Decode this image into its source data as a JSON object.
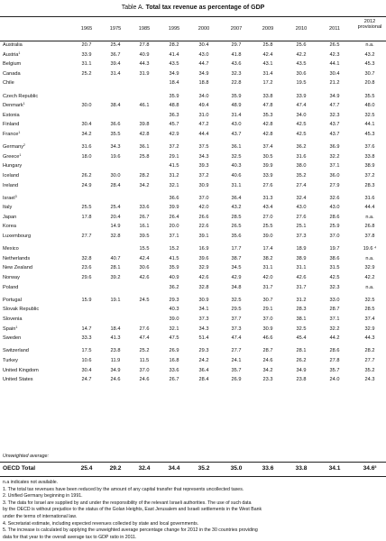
{
  "title": {
    "prefix": "Table A.",
    "main": "Total tax revenue as percentage of GDP"
  },
  "columns": [
    "1965",
    "1975",
    "1985",
    "1995",
    "2000",
    "2007",
    "2009",
    "2010",
    "2011"
  ],
  "last_column": {
    "year": "2012",
    "note": "provisional"
  },
  "rows": [
    {
      "country": "Australia",
      "sup": "",
      "values": [
        "20.7",
        "25.4",
        "27.8",
        "28.2",
        "30.4",
        "29.7",
        "25.8",
        "25.6",
        "26.5",
        "n.a."
      ]
    },
    {
      "country": "Austria",
      "sup": "1",
      "values": [
        "33.9",
        "36.7",
        "40.9",
        "41.4",
        "43.0",
        "41.8",
        "42.4",
        "42.2",
        "42.3",
        "43.2"
      ]
    },
    {
      "country": "Belgium",
      "sup": "",
      "values": [
        "31.1",
        "39.4",
        "44.3",
        "43.5",
        "44.7",
        "43.6",
        "43.1",
        "43.5",
        "44.1",
        "45.3"
      ]
    },
    {
      "country": "Canada",
      "sup": "",
      "values": [
        "25.2",
        "31.4",
        "31.9",
        "34.9",
        "34.9",
        "32.3",
        "31.4",
        "30.6",
        "30.4",
        "30.7"
      ]
    },
    {
      "country": "Chile",
      "sup": "",
      "values": [
        "",
        "",
        "",
        "18.4",
        "18.8",
        "22.8",
        "17.2",
        "19.5",
        "21.2",
        "20.8"
      ]
    },
    {
      "country": "Czech Republic",
      "sup": "",
      "values": [
        "",
        "",
        "",
        "35.9",
        "34.0",
        "35.9",
        "33.8",
        "33.9",
        "34.9",
        "35.5"
      ]
    },
    {
      "country": "Denmark",
      "sup": "1",
      "values": [
        "30.0",
        "38.4",
        "46.1",
        "48.8",
        "49.4",
        "48.9",
        "47.8",
        "47.4",
        "47.7",
        "48.0"
      ]
    },
    {
      "country": "Estonia",
      "sup": "",
      "values": [
        "",
        "",
        "",
        "36.3",
        "31.0",
        "31.4",
        "35.3",
        "34.0",
        "32.3",
        "32.5"
      ]
    },
    {
      "country": "Finland",
      "sup": "",
      "values": [
        "30.4",
        "36.6",
        "39.8",
        "45.7",
        "47.2",
        "43.0",
        "42.8",
        "42.5",
        "43.7",
        "44.1"
      ]
    },
    {
      "country": "France",
      "sup": "1",
      "values": [
        "34.2",
        "35.5",
        "42.8",
        "42.9",
        "44.4",
        "43.7",
        "42.8",
        "42.5",
        "43.7",
        "45.3"
      ]
    },
    {
      "country": "Germany",
      "sup": "2",
      "values": [
        "31.6",
        "34.3",
        "36.1",
        "37.2",
        "37.5",
        "36.1",
        "37.4",
        "36.2",
        "36.9",
        "37.6"
      ]
    },
    {
      "country": "Greece",
      "sup": "1",
      "values": [
        "18.0",
        "19.6",
        "25.8",
        "29.1",
        "34.3",
        "32.5",
        "30.5",
        "31.6",
        "32.2",
        "33.8"
      ]
    },
    {
      "country": "Hungary",
      "sup": "",
      "values": [
        "",
        "",
        "",
        "41.5",
        "39.3",
        "40.3",
        "39.9",
        "38.0",
        "37.1",
        "38.9"
      ]
    },
    {
      "country": "Iceland",
      "sup": "",
      "values": [
        "26.2",
        "30.0",
        "28.2",
        "31.2",
        "37.2",
        "40.6",
        "33.9",
        "35.2",
        "36.0",
        "37.2"
      ]
    },
    {
      "country": "Ireland",
      "sup": "",
      "values": [
        "24.9",
        "28.4",
        "34.2",
        "32.1",
        "30.9",
        "31.1",
        "27.6",
        "27.4",
        "27.9",
        "28.3"
      ]
    },
    {
      "country": "Israel",
      "sup": "3",
      "values": [
        "",
        "",
        "",
        "36.6",
        "37.0",
        "36.4",
        "31.3",
        "32.4",
        "32.6",
        "31.6"
      ]
    },
    {
      "country": "Italy",
      "sup": "",
      "values": [
        "25.5",
        "25.4",
        "33.6",
        "39.9",
        "42.0",
        "43.2",
        "43.4",
        "43.0",
        "43.0",
        "44.4"
      ]
    },
    {
      "country": "Japan",
      "sup": "",
      "values": [
        "17.8",
        "20.4",
        "26.7",
        "26.4",
        "26.6",
        "28.5",
        "27.0",
        "27.6",
        "28.6",
        "n.a."
      ]
    },
    {
      "country": "Korea",
      "sup": "",
      "values": [
        "",
        "14.9",
        "16.1",
        "20.0",
        "22.6",
        "26.5",
        "25.5",
        "25.1",
        "25.9",
        "26.8"
      ]
    },
    {
      "country": "Luxembourg",
      "sup": "",
      "values": [
        "27.7",
        "32.8",
        "39.5",
        "37.1",
        "39.1",
        "35.6",
        "39.0",
        "37.3",
        "37.0",
        "37.8"
      ]
    },
    {
      "country": "Mexico",
      "sup": "",
      "values": [
        "",
        "",
        "15.5",
        "15.2",
        "16.9",
        "17.7",
        "17.4",
        "18.9",
        "19.7",
        "19.6 ⁴"
      ]
    },
    {
      "country": "Netherlands",
      "sup": "",
      "values": [
        "32.8",
        "40.7",
        "42.4",
        "41.5",
        "39.6",
        "38.7",
        "38.2",
        "38.9",
        "38.6",
        "n.a."
      ]
    },
    {
      "country": "New Zealand",
      "sup": "",
      "values": [
        "23.6",
        "28.1",
        "30.6",
        "35.9",
        "32.9",
        "34.5",
        "31.1",
        "31.1",
        "31.5",
        "32.9"
      ]
    },
    {
      "country": "Norway",
      "sup": "",
      "values": [
        "29.6",
        "39.2",
        "42.6",
        "40.9",
        "42.6",
        "42.9",
        "42.0",
        "42.6",
        "42.5",
        "42.2"
      ]
    },
    {
      "country": "Poland",
      "sup": "",
      "values": [
        "",
        "",
        "",
        "36.2",
        "32.8",
        "34.8",
        "31.7",
        "31.7",
        "32.3",
        "n.a."
      ]
    },
    {
      "country": "Portugal",
      "sup": "",
      "values": [
        "15.9",
        "19.1",
        "24.5",
        "29.3",
        "30.9",
        "32.5",
        "30.7",
        "31.2",
        "33.0",
        "32.5"
      ]
    },
    {
      "country": "Slovak Republic",
      "sup": "",
      "values": [
        "",
        "",
        "",
        "40.3",
        "34.1",
        "29.5",
        "29.1",
        "28.3",
        "28.7",
        "28.5"
      ]
    },
    {
      "country": "Slovenia",
      "sup": "",
      "values": [
        "",
        "",
        "",
        "39.0",
        "37.3",
        "37.7",
        "37.0",
        "38.1",
        "37.1",
        "37.4"
      ]
    },
    {
      "country": "Spain",
      "sup": "1",
      "values": [
        "14.7",
        "18.4",
        "27.6",
        "32.1",
        "34.3",
        "37.3",
        "30.9",
        "32.5",
        "32.2",
        "32.9"
      ]
    },
    {
      "country": "Sweden",
      "sup": "",
      "values": [
        "33.3",
        "41.3",
        "47.4",
        "47.5",
        "51.4",
        "47.4",
        "46.6",
        "45.4",
        "44.2",
        "44.3"
      ]
    },
    {
      "country": "Switzerland",
      "sup": "",
      "values": [
        "17.5",
        "23.8",
        "25.2",
        "26.9",
        "29.3",
        "27.7",
        "28.7",
        "28.1",
        "28.6",
        "28.2"
      ]
    },
    {
      "country": "Turkey",
      "sup": "",
      "values": [
        "10.6",
        "11.9",
        "11.5",
        "16.8",
        "24.2",
        "24.1",
        "24.6",
        "26.2",
        "27.8",
        "27.7"
      ]
    },
    {
      "country": "United Kingdom",
      "sup": "",
      "values": [
        "30.4",
        "34.9",
        "37.0",
        "33.6",
        "36.4",
        "35.7",
        "34.2",
        "34.9",
        "35.7",
        "35.2"
      ]
    },
    {
      "country": "United States",
      "sup": "",
      "values": [
        "24.7",
        "24.6",
        "24.6",
        "26.7",
        "28.4",
        "26.9",
        "23.3",
        "23.8",
        "24.0",
        "24.3"
      ]
    }
  ],
  "average_label": "Unweighted average:",
  "oecd": {
    "label": "OECD Total",
    "values": [
      "25.4",
      "29.2",
      "32.4",
      "34.4",
      "35.2",
      "35.0",
      "33.6",
      "33.8",
      "34.1",
      "34.6"
    ],
    "last_sup": "5"
  },
  "notes": [
    "n.a indicates not available.",
    "1. The total tax revenues have been reduced by the amount of any capital transfer that represents uncollected taxes.",
    "2. Unified Germany beginning in 1991.",
    "3. The data for Israel are supplied by and under the responsibility of the relevant Israeli authorities. The use of such data",
    "by the OECD is without prejudice to the status of the Golan Heights, East Jerusalem and Israeli settlements in the West Bank",
    "under the terms of international law.",
    "4. Secretariat estimate, including expected revenues collected by state and local governments.",
    "5. The increase is calculated by applying the unweighted average percentage change for 2012 in the 30 countries providing",
    "data for that year to the overall average tax to GDP ratio in 2011."
  ]
}
